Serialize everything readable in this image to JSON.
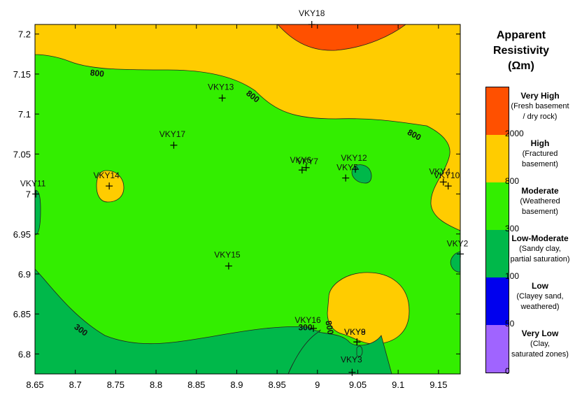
{
  "map": {
    "x_ticks": [
      "8.65",
      "8.7",
      "8.75",
      "8.8",
      "8.85",
      "8.9",
      "8.95",
      "9",
      "9.05",
      "9.1",
      "9.15"
    ],
    "y_ticks": [
      "7.2",
      "7.15",
      "7.1",
      "7.05",
      "7",
      "6.95",
      "6.9",
      "6.85",
      "6.8"
    ],
    "x_range": [
      8.65,
      9.177
    ],
    "y_range": [
      6.775,
      7.212
    ],
    "stations": [
      {
        "name": "VKY18",
        "lon": 8.993,
        "lat": 7.212,
        "label_dx": 0,
        "label_dy": -12,
        "anchor": "middle"
      },
      {
        "name": "VKY13",
        "lon": 8.882,
        "lat": 7.12,
        "label_dx": -2,
        "label_dy": -12,
        "anchor": "middle"
      },
      {
        "name": "VKY17",
        "lon": 8.822,
        "lat": 7.061,
        "label_dx": -2,
        "label_dy": -12,
        "anchor": "middle"
      },
      {
        "name": "VKY14",
        "lon": 8.742,
        "lat": 7.01,
        "label_dx": -4,
        "label_dy": -11,
        "anchor": "middle"
      },
      {
        "name": "VKY11",
        "lon": 8.651,
        "lat": 7.0,
        "label_dx": -4,
        "label_dy": -11,
        "anchor": "middle"
      },
      {
        "name": "VKY7",
        "lon": 8.986,
        "lat": 7.033,
        "label_dx": 2,
        "label_dy": -5,
        "anchor": "middle"
      },
      {
        "name": "VKY6",
        "lon": 8.981,
        "lat": 7.03,
        "label_dx": -2,
        "label_dy": -10,
        "anchor": "middle"
      },
      {
        "name": "VKY12",
        "lon": 9.047,
        "lat": 7.031,
        "label_dx": -2,
        "label_dy": -12,
        "anchor": "middle"
      },
      {
        "name": "VKY5",
        "lon": 9.035,
        "lat": 7.02,
        "label_dx": -13,
        "label_dy": -11,
        "anchor": "start"
      },
      {
        "name": "VKY4",
        "lon": 9.156,
        "lat": 7.015,
        "label_dx": -5,
        "label_dy": -11,
        "anchor": "middle"
      },
      {
        "name": "VKY10",
        "lon": 9.162,
        "lat": 7.01,
        "label_dx": -2,
        "label_dy": -11,
        "anchor": "middle"
      },
      {
        "name": "VKY2",
        "lon": 9.177,
        "lat": 6.925,
        "label_dx": -4,
        "label_dy": -11,
        "anchor": "middle"
      },
      {
        "name": "VKY15",
        "lon": 8.89,
        "lat": 6.91,
        "label_dx": -2,
        "label_dy": -12,
        "anchor": "middle"
      },
      {
        "name": "VKY16",
        "lon": 8.995,
        "lat": 6.832,
        "label_dx": -8,
        "label_dy": -8,
        "anchor": "middle"
      },
      {
        "name": "VKY9",
        "lon": 9.049,
        "lat": 6.815,
        "label_dx": -3,
        "label_dy": -10,
        "anchor": "middle"
      },
      {
        "name": "VKY8",
        "lon": 9.049,
        "lat": 6.815,
        "label_dx": -3,
        "label_dy": -10,
        "anchor": "middle"
      },
      {
        "name": "VKY3",
        "lon": 9.043,
        "lat": 6.777,
        "label_dx": -1,
        "label_dy": -14,
        "anchor": "middle"
      }
    ],
    "contour_labels": [
      {
        "text": "800",
        "lon": 8.727,
        "lat": 7.151,
        "rot": 6
      },
      {
        "text": "800",
        "lon": 8.92,
        "lat": 7.122,
        "rot": 38
      },
      {
        "text": "800",
        "lon": 9.12,
        "lat": 7.074,
        "rot": 28
      },
      {
        "text": "300",
        "lon": 8.707,
        "lat": 6.83,
        "rot": 36
      },
      {
        "text": "300",
        "lon": 8.985,
        "lat": 6.833,
        "rot": 0
      },
      {
        "text": "800",
        "lon": 9.015,
        "lat": 6.833,
        "rot": 80
      }
    ],
    "colors": {
      "very_high": "#FF5000",
      "high": "#FFCC00",
      "moderate": "#33EE00",
      "low_moderate": "#00B84A",
      "low": "#0000EE",
      "very_low": "#A064FF"
    }
  },
  "legend": {
    "title_line1": "Apparent",
    "title_line2": "Resistivity",
    "title_line3": "(Ωm)",
    "classes": [
      {
        "name": "Very High",
        "desc1": "(Fresh basement",
        "desc2": "/ dry rock)",
        "color": "#FF5000"
      },
      {
        "name": "High",
        "desc1": "(Fractured",
        "desc2": "basement)",
        "color": "#FFCC00"
      },
      {
        "name": "Moderate",
        "desc1": "(Weathered",
        "desc2": "basement)",
        "color": "#33EE00"
      },
      {
        "name": "Low-Moderate",
        "desc1": "(Sandy clay,",
        "desc2": "partial saturation)",
        "color": "#00B84A"
      },
      {
        "name": "Low",
        "desc1": "(Clayey sand,",
        "desc2": "weathered)",
        "color": "#0000EE"
      },
      {
        "name": "Very Low",
        "desc1": "(Clay,",
        "desc2": "saturated zones)",
        "color": "#A064FF"
      }
    ],
    "breaks": [
      "2000",
      "800",
      "300",
      "100",
      "50",
      "0"
    ]
  }
}
